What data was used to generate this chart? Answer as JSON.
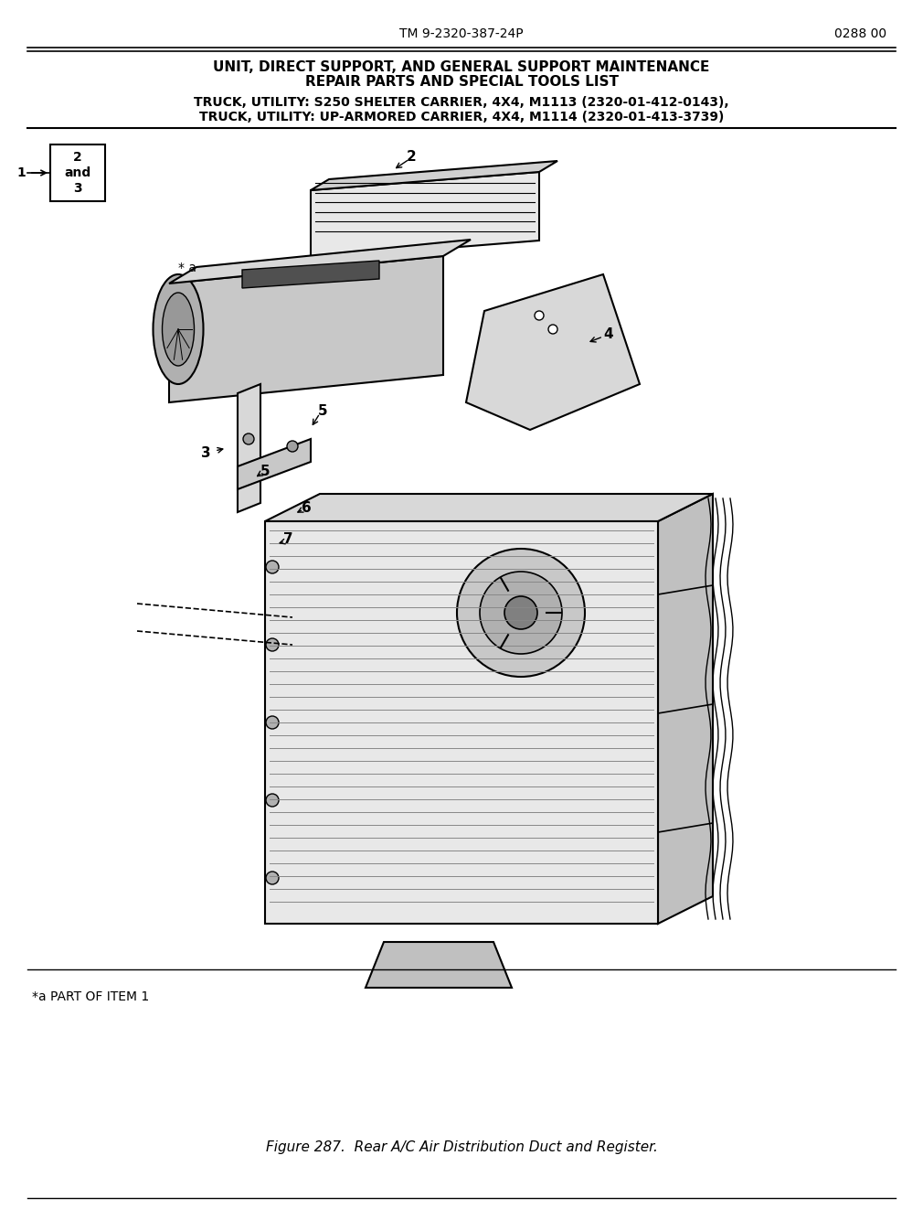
{
  "header_left": "TM 9-2320-387-24P",
  "header_right": "0288 00",
  "title_line1": "UNIT, DIRECT SUPPORT, AND GENERAL SUPPORT MAINTENANCE",
  "title_line2": "REPAIR PARTS AND SPECIAL TOOLS LIST",
  "subtitle_line1": "TRUCK, UTILITY: S250 SHELTER CARRIER, 4X4, M1113 (2320-01-412-0143),",
  "subtitle_line2": "TRUCK, UTILITY: UP-ARMORED CARRIER, 4X4, M1114 (2320-01-413-3739)",
  "footer_note": "*a PART OF ITEM 1",
  "caption": "Figure 287.  Rear A/C Air Distribution Duct and Register.",
  "bg_color": "#ffffff",
  "line_color": "#000000",
  "label_1": "1",
  "label_2_and_3": "2\nand\n3",
  "label_2": "2",
  "label_3": "3",
  "label_4": "4",
  "label_5a": "5",
  "label_5b": "5",
  "label_6": "6",
  "label_7": "7",
  "label_star_a": "* a"
}
